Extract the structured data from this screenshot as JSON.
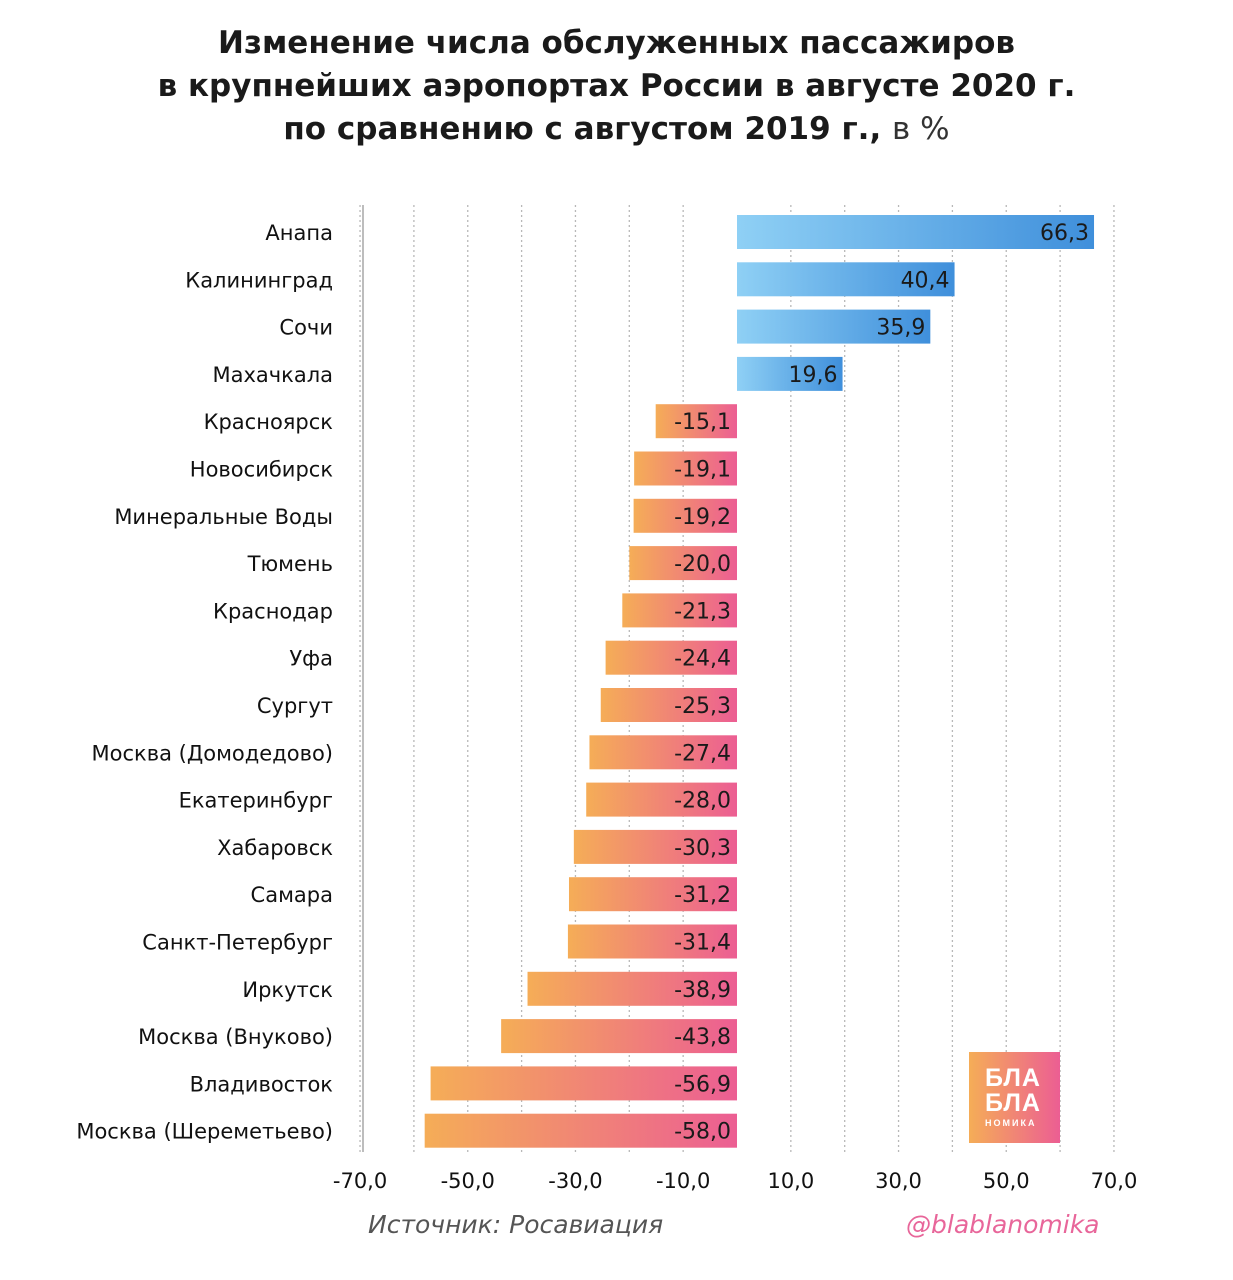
{
  "title": {
    "line1": "Изменение числа обслуженных пассажиров",
    "line2": "в крупнейших аэропортах России в августе 2020 г.",
    "line3": "по сравнению с августом 2019 г.,",
    "unit": "в %"
  },
  "source": "Источник: Росавиация",
  "handle": "@blablanomika",
  "logo": {
    "line1": "БЛА",
    "line2": "БЛА",
    "line3": "НОМИКА"
  },
  "colors": {
    "pos_start": "#8fd0f5",
    "pos_end": "#3f8fdb",
    "neg_start": "#f5ad57",
    "neg_end": "#ec5e93"
  },
  "chart_data": {
    "type": "bar",
    "orientation": "horizontal",
    "categories": [
      "Анапа",
      "Калининград",
      "Сочи",
      "Махачкала",
      "Красноярск",
      "Новосибирск",
      "Минеральные Воды",
      "Тюмень",
      "Краснодар",
      "Уфа",
      "Сургут",
      "Москва (Домодедово)",
      "Екатеринбург",
      "Хабаровск",
      "Самара",
      "Санкт-Петербург",
      "Иркутск",
      "Москва (Внуково)",
      "Владивосток",
      "Москва (Шереметьево)"
    ],
    "values": [
      66.3,
      40.4,
      35.9,
      19.6,
      -15.1,
      -19.1,
      -19.2,
      -20.0,
      -21.3,
      -24.4,
      -25.3,
      -27.4,
      -28.0,
      -30.3,
      -31.2,
      -31.4,
      -38.9,
      -43.8,
      -56.9,
      -58.0
    ],
    "labels": [
      "66,3",
      "40,4",
      "35,9",
      "19,6",
      "-15,1",
      "-19,1",
      "-19,2",
      "-20,0",
      "-21,3",
      "-24,4",
      "-25,3",
      "-27,4",
      "-28,0",
      "-30,3",
      "-31,2",
      "-31,4",
      "-38,9",
      "-43,8",
      "-56,9",
      "-58,0"
    ],
    "xticks": [
      -70,
      -50,
      -30,
      -10,
      10,
      30,
      50,
      70
    ],
    "xtick_labels": [
      "-70,0",
      "-50,0",
      "-30,0",
      "-10,0",
      "10,0",
      "30,0",
      "50,0",
      "70,0"
    ],
    "xlim": [
      -70,
      70
    ],
    "grid": true
  }
}
